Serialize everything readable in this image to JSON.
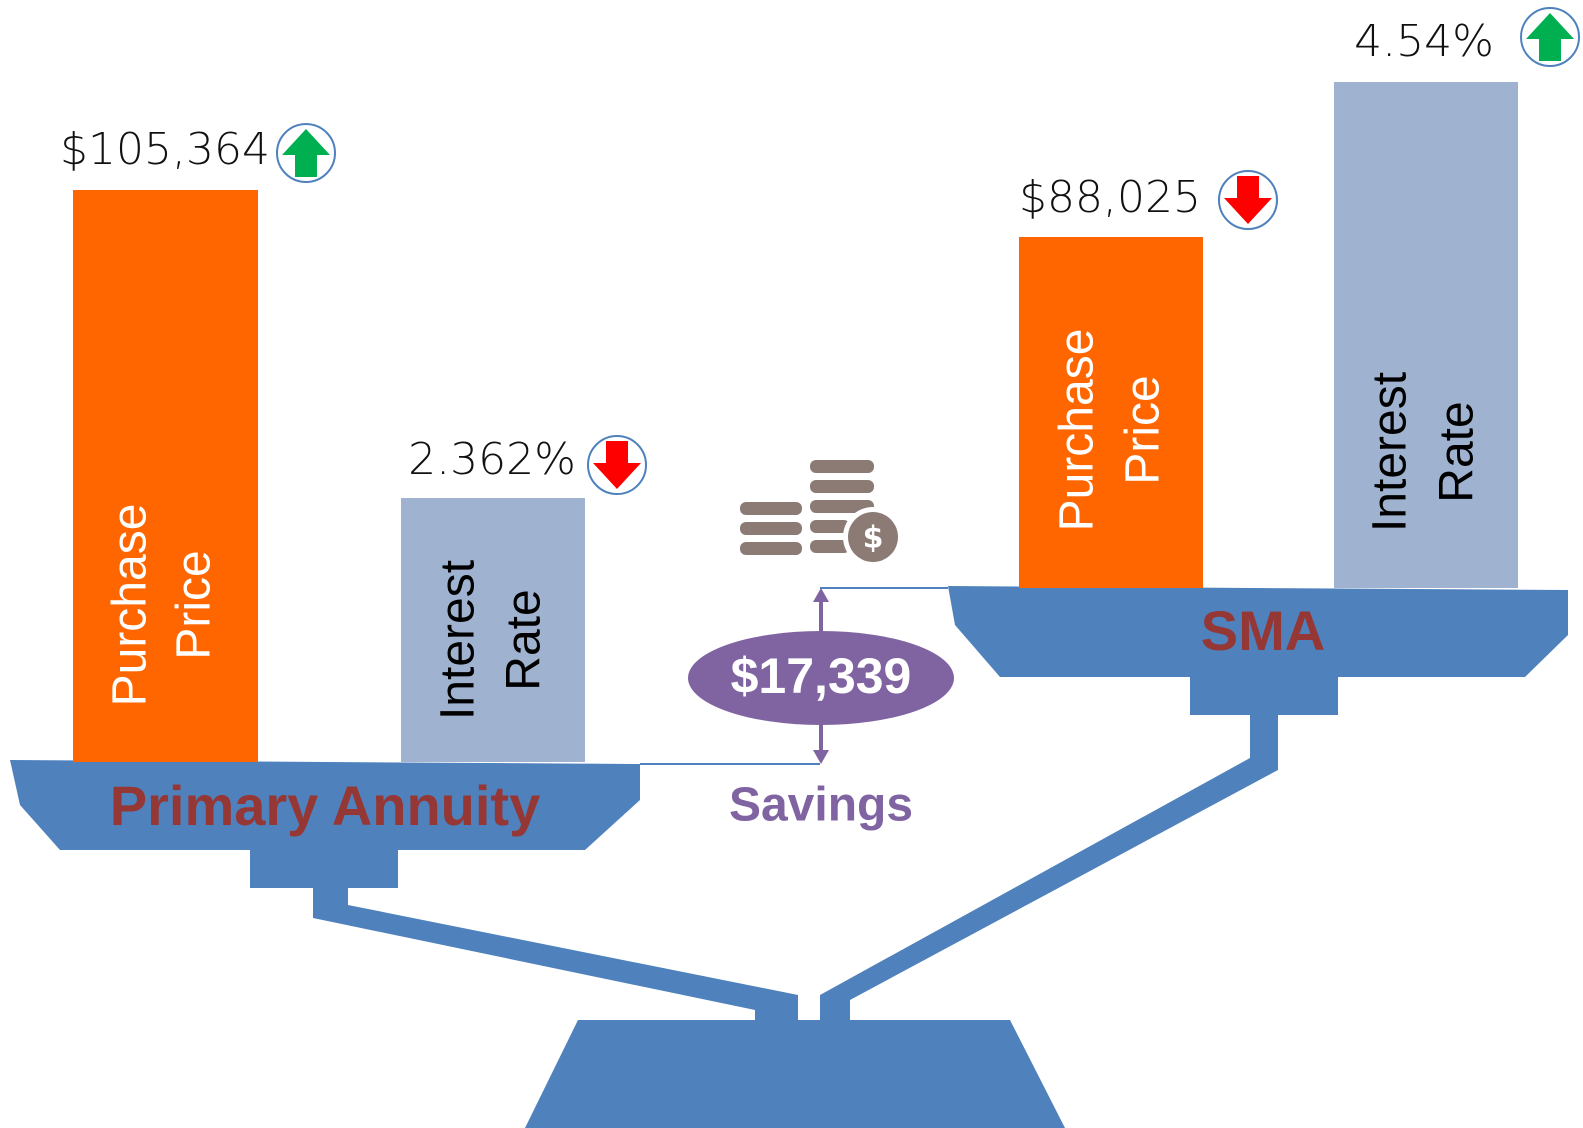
{
  "primary_annuity": {
    "label": "Primary Annuity",
    "purchase_price": {
      "label": [
        "Purchase",
        "Price"
      ],
      "value": "$105,364"
    },
    "interest_rate": {
      "label": [
        "Interest",
        "Rate"
      ],
      "value": "2.362%"
    }
  },
  "sma": {
    "label": "SMA",
    "purchase_price": {
      "label": [
        "Purchase",
        "Price"
      ],
      "value": "$88,025"
    },
    "interest_rate": {
      "label": [
        "Interest",
        "Rate"
      ],
      "value": "4.54%"
    }
  },
  "savings": {
    "value": "$17,339",
    "label": "Savings"
  }
}
